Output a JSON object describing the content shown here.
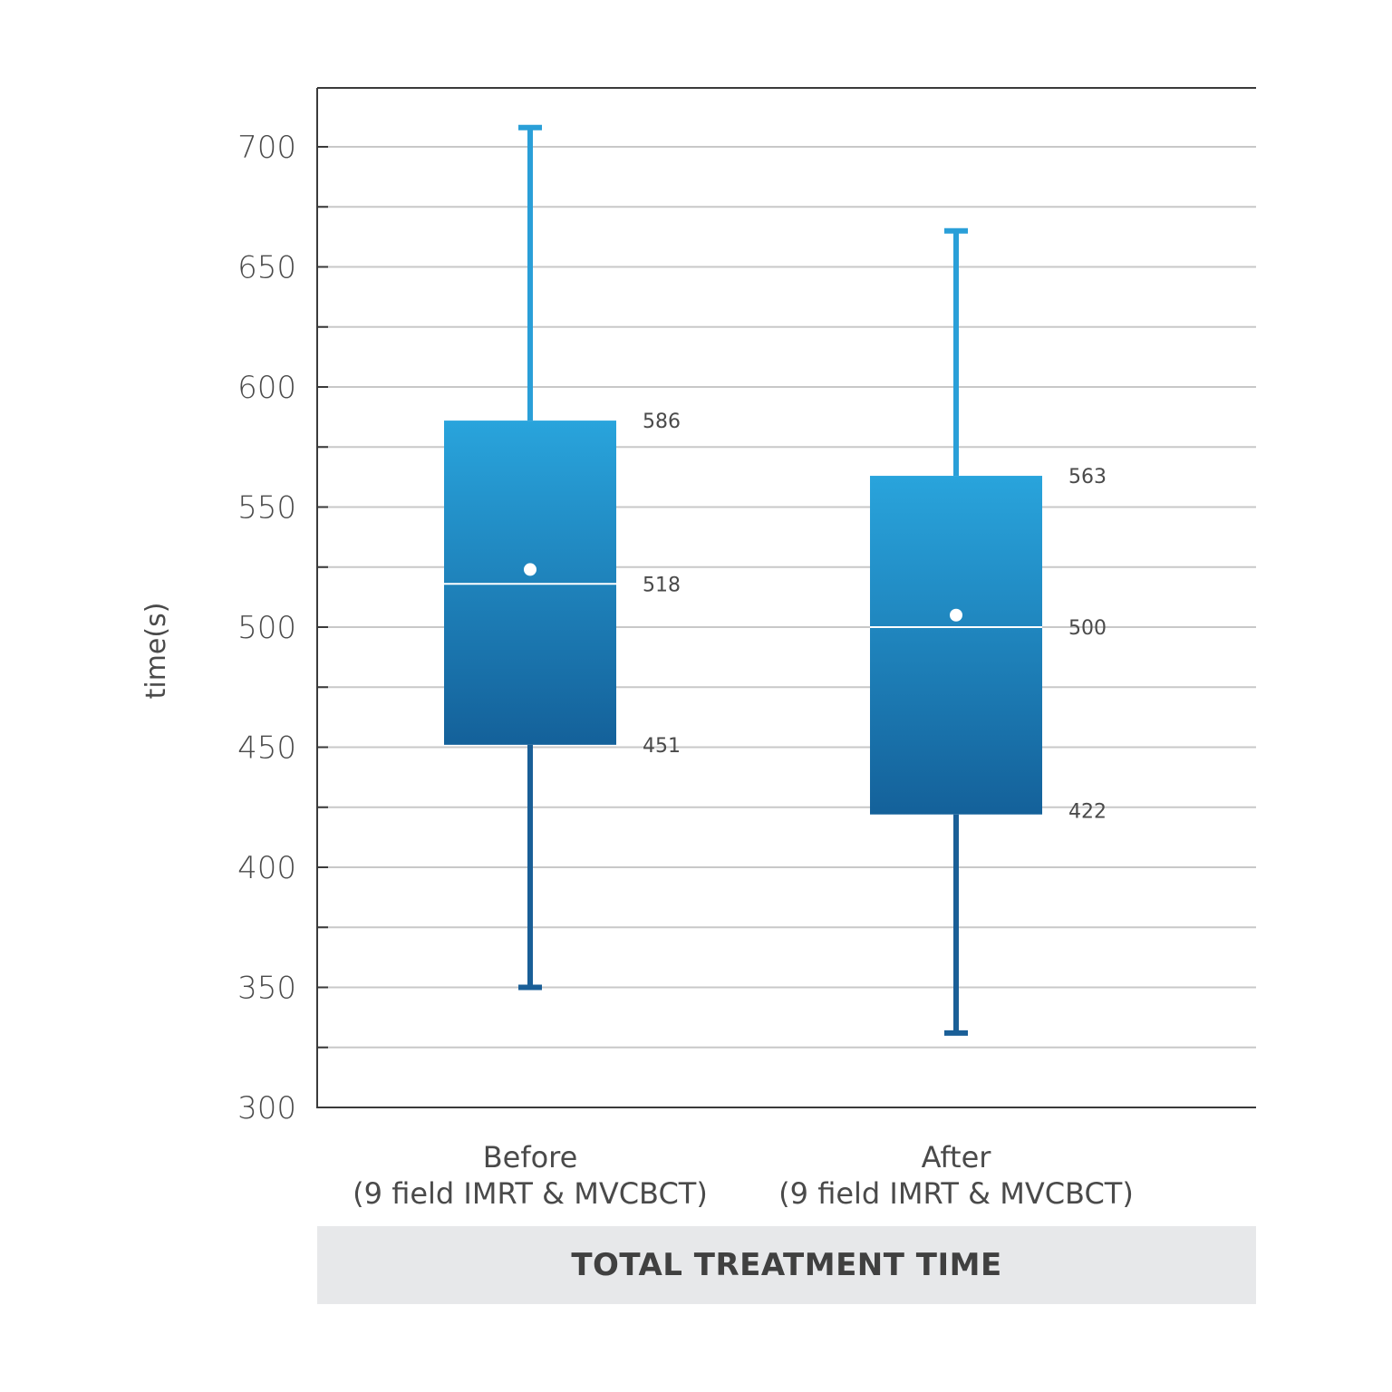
{
  "chart_data": {
    "type": "box",
    "title": "TOTAL TREATMENT TIME",
    "ylabel": "time(s)",
    "ylim": [
      300,
      720
    ],
    "yticks": [
      300,
      350,
      400,
      450,
      500,
      550,
      600,
      650,
      700
    ],
    "grid": true,
    "categories": [
      [
        "Before",
        "(9 field IMRT & MVCBCT)"
      ],
      [
        "After",
        "(9 field IMRT & MVCBCT)"
      ]
    ],
    "boxes": [
      {
        "min": 350,
        "q1": 451,
        "median": 518,
        "q3": 586,
        "max": 708,
        "mean": 524,
        "labels": {
          "q3": "586",
          "median": "518",
          "q1": "451"
        }
      },
      {
        "min": 331,
        "q1": 422,
        "median": 500,
        "q3": 563,
        "max": 665,
        "mean": 505,
        "labels": {
          "q3": "563",
          "median": "500",
          "q1": "422"
        }
      }
    ],
    "colors": {
      "box_top": "#29a4dc",
      "box_bottom": "#14619a",
      "whisker_top": "#2a9fd8",
      "whisker_bottom": "#1a5f97",
      "marker": "#ffffff"
    }
  }
}
